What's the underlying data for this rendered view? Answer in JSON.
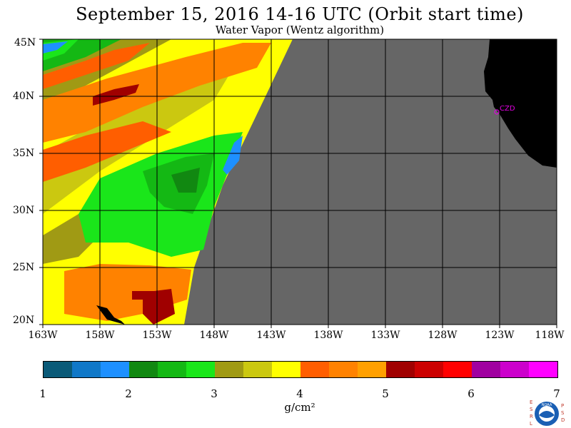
{
  "header": {
    "title": "September 15, 2016  14-16 UTC  (Orbit start time)",
    "subtitle": "Water Vapor (Wentz algorithm)"
  },
  "map": {
    "lat_labels": [
      "45N",
      "40N",
      "35N",
      "30N",
      "25N",
      "20N"
    ],
    "lon_labels": [
      "163W",
      "158W",
      "153W",
      "148W",
      "143W",
      "138W",
      "133W",
      "128W",
      "123W",
      "118W"
    ],
    "station_label": "CZD",
    "colors": {
      "land": "#000000",
      "no_data": "#666666",
      "grid": "#000000",
      "station": "#e000e0"
    }
  },
  "colorbar": {
    "ticks": [
      "1",
      "2",
      "3",
      "4",
      "5",
      "6",
      "7"
    ],
    "unit": "g/cm²",
    "colors": [
      "#0a5a78",
      "#1078c8",
      "#1e90ff",
      "#118811",
      "#14b814",
      "#1ae61a",
      "#a09a14",
      "#cbc810",
      "#ffff00",
      "#ff5e00",
      "#ff8200",
      "#ffa000",
      "#a00000",
      "#cc0000",
      "#ff0000",
      "#a000a0",
      "#cc00cc",
      "#ff00ff"
    ]
  },
  "logo": {
    "left_letters": "ESRL",
    "right_letters": "PSD",
    "center_text": "NOAA"
  }
}
